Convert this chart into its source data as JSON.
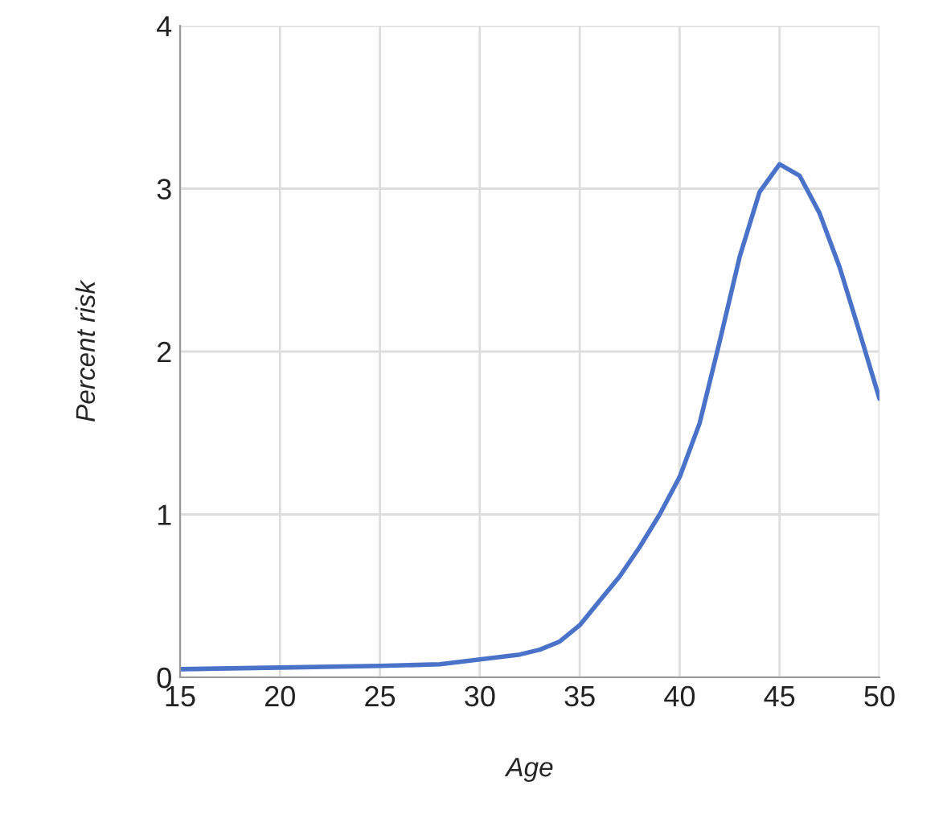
{
  "chart_data": {
    "type": "line",
    "xlabel": "Age",
    "ylabel": "Percent risk",
    "x": [
      15,
      20,
      25,
      28,
      30,
      32,
      33,
      34,
      35,
      36,
      37,
      38,
      39,
      40,
      41,
      42,
      43,
      44,
      45,
      46,
      47,
      48,
      49,
      50
    ],
    "series": [
      {
        "color": "#4a72c8",
        "values": [
          0.05,
          0.06,
          0.07,
          0.08,
          0.11,
          0.14,
          0.17,
          0.22,
          0.32,
          0.47,
          0.62,
          0.8,
          1.0,
          1.23,
          1.56,
          2.06,
          2.58,
          2.98,
          3.15,
          3.08,
          2.85,
          2.52,
          2.12,
          1.71
        ]
      }
    ],
    "xlim": [
      15,
      50
    ],
    "xticks": [
      15,
      20,
      25,
      30,
      35,
      40,
      45,
      50
    ],
    "ylim": [
      0,
      4
    ],
    "yticks": [
      0,
      1,
      2,
      3,
      4
    ],
    "grid": true,
    "marker": "none",
    "line_style": "solid"
  }
}
